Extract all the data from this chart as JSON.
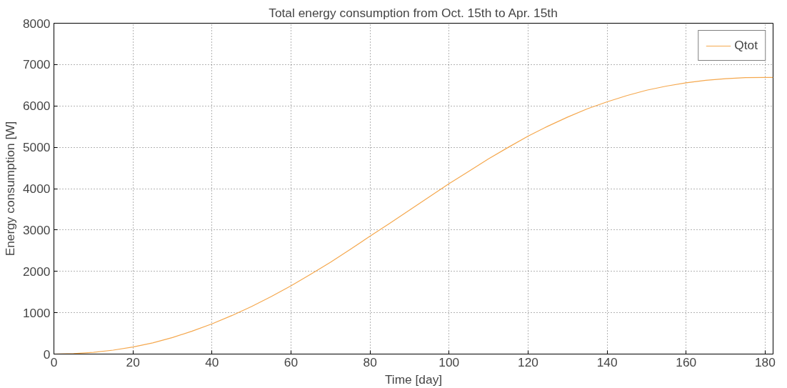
{
  "chart_data": {
    "type": "line",
    "title": "Total energy consumption from Oct. 15th to Apr. 15th",
    "xlabel": "Time [day]",
    "ylabel": "Energy consumption [W]",
    "x": [
      0,
      5,
      10,
      15,
      20,
      25,
      30,
      35,
      40,
      45,
      50,
      55,
      60,
      65,
      70,
      75,
      80,
      85,
      90,
      95,
      100,
      105,
      110,
      115,
      120,
      125,
      130,
      135,
      140,
      145,
      150,
      155,
      160,
      165,
      170,
      175,
      180,
      182
    ],
    "series": [
      {
        "name": "Qtot",
        "color": "#f5a84e",
        "values": [
          0,
          10,
          40,
          95,
          170,
          270,
          400,
          555,
          730,
          930,
          1150,
          1390,
          1650,
          1930,
          2220,
          2530,
          2850,
          3160,
          3480,
          3800,
          4120,
          4420,
          4720,
          5000,
          5270,
          5510,
          5730,
          5930,
          6100,
          6250,
          6380,
          6480,
          6560,
          6620,
          6660,
          6685,
          6690,
          6690
        ]
      }
    ],
    "xlim": [
      0,
      182
    ],
    "xticks": [
      0,
      20,
      40,
      60,
      80,
      100,
      120,
      140,
      160,
      180
    ],
    "ylim": [
      0,
      8000
    ],
    "yticks": [
      0,
      1000,
      2000,
      3000,
      4000,
      5000,
      6000,
      7000,
      8000
    ],
    "grid": true,
    "legend": "top right",
    "line_style": "solid",
    "marker": "none"
  }
}
